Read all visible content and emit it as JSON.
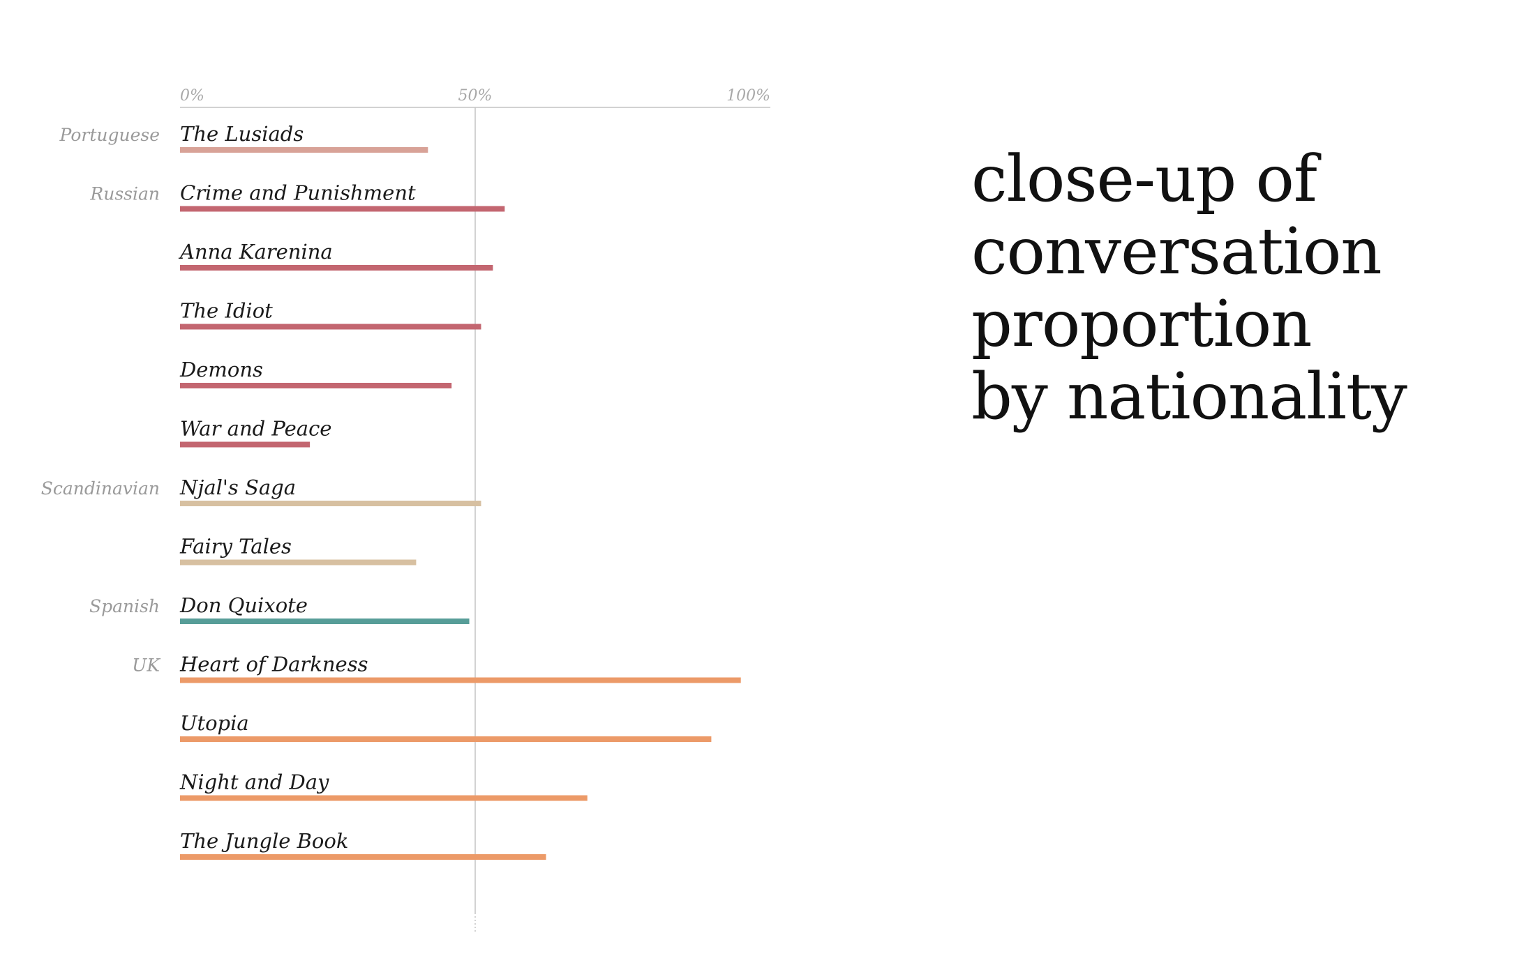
{
  "headline": {
    "lines": [
      "close-up of",
      "conversation",
      "proportion",
      "by nationality"
    ]
  },
  "colors": {
    "Portuguese": "#d8a297",
    "Russian": "#c36670",
    "Scandinavian": "#d7c0a1",
    "Spanish": "#579d98",
    "UK": "#ec9a68",
    "axis": "#c4c4c4"
  },
  "chart_data": {
    "type": "bar",
    "orientation": "horizontal",
    "title": "",
    "xlabel": "",
    "ylabel": "",
    "xlim": [
      0,
      100
    ],
    "x_ticks": [
      "0%",
      "50%",
      "100%"
    ],
    "reference_line": 50,
    "grid": false,
    "legend": "none",
    "rows": [
      {
        "group": "Portuguese",
        "label": "The Lusiads",
        "value": 42
      },
      {
        "group": "Russian",
        "label": "Crime and Punishment",
        "value": 55
      },
      {
        "group": "",
        "label": "Anna Karenina",
        "value": 53
      },
      {
        "group": "",
        "label": "The Idiot",
        "value": 51
      },
      {
        "group": "",
        "label": "Demons",
        "value": 46
      },
      {
        "group": "",
        "label": "War and Peace",
        "value": 22
      },
      {
        "group": "Scandinavian",
        "label": "Njal's Saga",
        "value": 51
      },
      {
        "group": "",
        "label": "Fairy Tales",
        "value": 40
      },
      {
        "group": "Spanish",
        "label": "Don Quixote",
        "value": 49
      },
      {
        "group": "UK",
        "label": "Heart of Darkness",
        "value": 95
      },
      {
        "group": "",
        "label": "Utopia",
        "value": 90
      },
      {
        "group": "",
        "label": "Night and Day",
        "value": 69
      },
      {
        "group": "",
        "label": "The Jungle Book",
        "value": 62
      }
    ],
    "row_color_groups": [
      "Portuguese",
      "Russian",
      "Russian",
      "Russian",
      "Russian",
      "Russian",
      "Scandinavian",
      "Scandinavian",
      "Spanish",
      "UK",
      "UK",
      "UK",
      "UK"
    ]
  }
}
